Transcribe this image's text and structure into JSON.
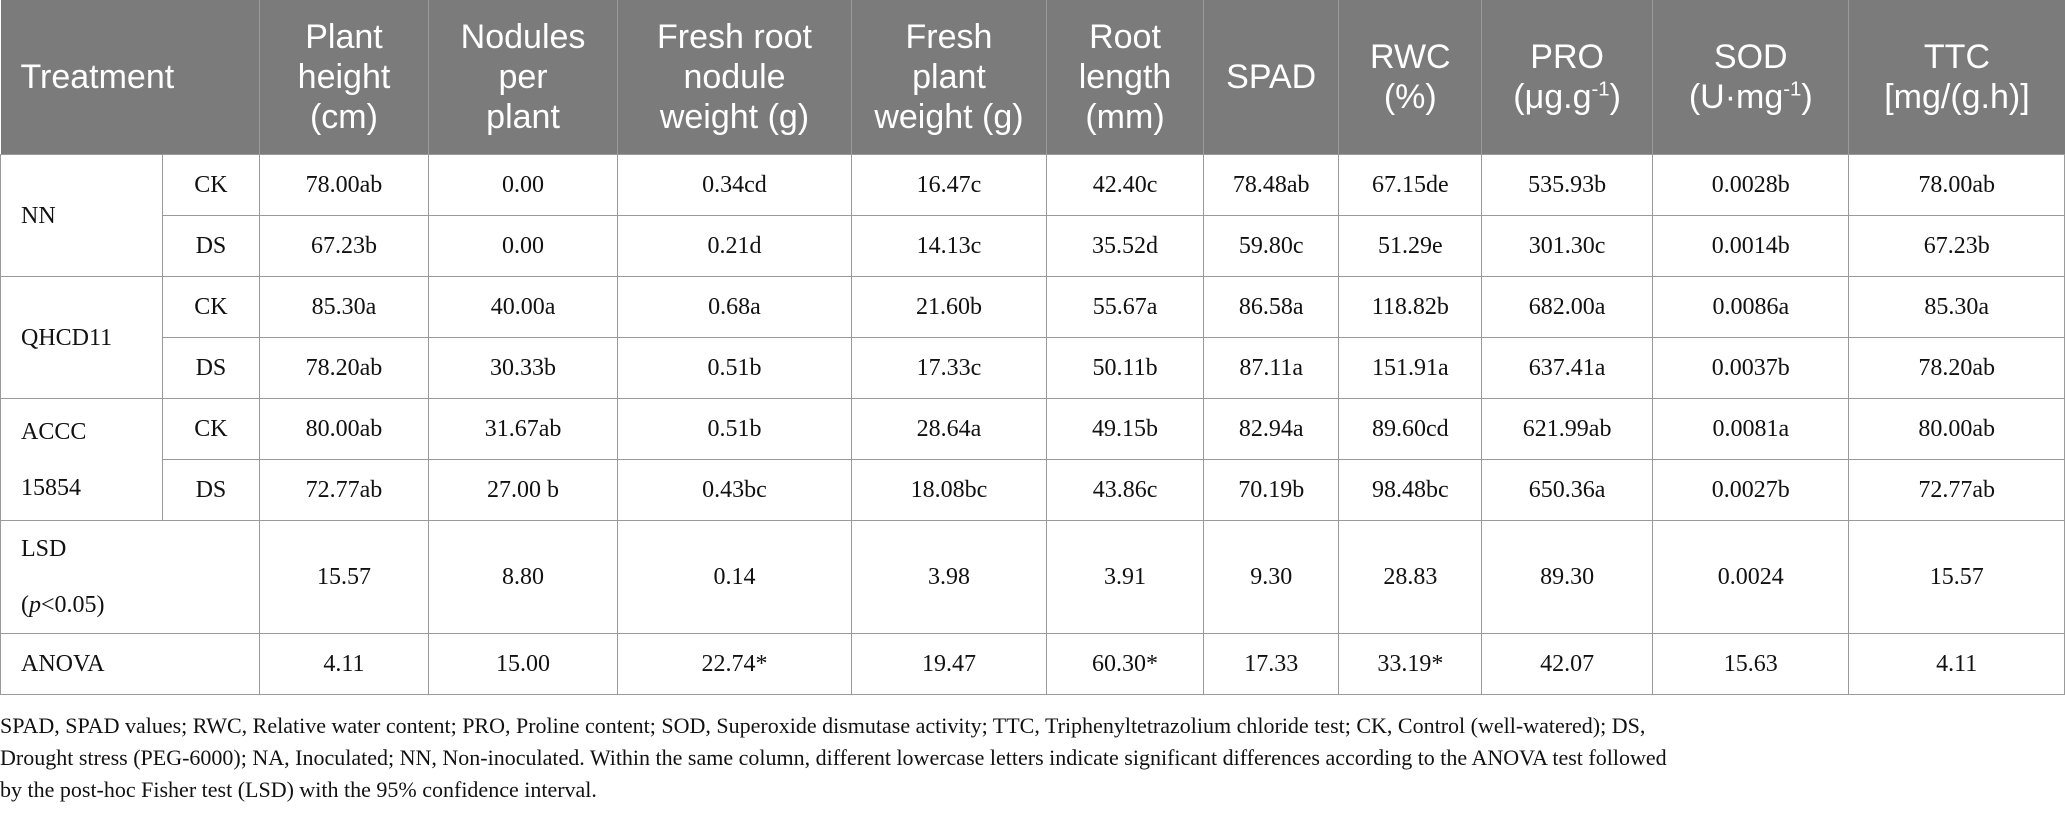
{
  "header": {
    "treatment": "Treatment",
    "columns": [
      {
        "line1": "Plant",
        "line2": "height",
        "line3": "(cm)"
      },
      {
        "line1": "Nodules",
        "line2": "per",
        "line3": "plant"
      },
      {
        "line1": "Fresh root",
        "line2": "nodule",
        "line3": "weight (g)"
      },
      {
        "line1": "Fresh",
        "line2": "plant",
        "line3": "weight (g)"
      },
      {
        "line1": "Root",
        "line2": "length",
        "line3": "(mm)"
      },
      {
        "line1": "SPAD",
        "line2": "",
        "line3": ""
      },
      {
        "line1": "RWC",
        "line2": "(%)",
        "line3": ""
      },
      {
        "line1": "PRO",
        "line2_pre": "(μg.g",
        "line2_sup": "-1",
        "line2_post": ")"
      },
      {
        "line1": "SOD",
        "line2_pre": "(U·mg",
        "line2_sup": "-1",
        "line2_post": ")"
      },
      {
        "line1": "TTC",
        "line2": "[mg/(g.h)]"
      }
    ]
  },
  "groups": [
    {
      "label_line1": "NN",
      "label_line2": "",
      "rows": [
        {
          "sub": "CK",
          "values": [
            "78.00ab",
            "0.00",
            "0.34cd",
            "16.47c",
            "42.40c",
            "78.48ab",
            "67.15de",
            "535.93b",
            "0.0028b",
            "78.00ab"
          ]
        },
        {
          "sub": "DS",
          "values": [
            "67.23b",
            "0.00",
            "0.21d",
            "14.13c",
            "35.52d",
            "59.80c",
            "51.29e",
            "301.30c",
            "0.0014b",
            "67.23b"
          ]
        }
      ]
    },
    {
      "label_line1": "QHCD11",
      "label_line2": "",
      "rows": [
        {
          "sub": "CK",
          "values": [
            "85.30a",
            "40.00a",
            "0.68a",
            "21.60b",
            "55.67a",
            "86.58a",
            "118.82b",
            "682.00a",
            "0.0086a",
            "85.30a"
          ]
        },
        {
          "sub": "DS",
          "values": [
            "78.20ab",
            "30.33b",
            "0.51b",
            "17.33c",
            "50.11b",
            "87.11a",
            "151.91a",
            "637.41a",
            "0.0037b",
            "78.20ab"
          ]
        }
      ]
    },
    {
      "label_line1": "ACCC",
      "label_line2": "15854",
      "rows": [
        {
          "sub": "CK",
          "values": [
            "80.00ab",
            "31.67ab",
            "0.51b",
            "28.64a",
            "49.15b",
            "82.94a",
            "89.60cd",
            "621.99ab",
            "0.0081a",
            "80.00ab"
          ]
        },
        {
          "sub": "DS",
          "values": [
            "72.77ab",
            "27.00 b",
            "0.43bc",
            "18.08bc",
            "43.86c",
            "70.19b",
            "98.48bc",
            "650.36a",
            "0.0027b",
            "72.77ab"
          ]
        }
      ]
    }
  ],
  "lsd": {
    "label_line1": "LSD",
    "label_open": "(",
    "label_p": "p",
    "label_rest": "<0.05)",
    "values": [
      "15.57",
      "8.80",
      "0.14",
      "3.98",
      "3.91",
      "9.30",
      "28.83",
      "89.30",
      "0.0024",
      "15.57"
    ]
  },
  "anova": {
    "label": "ANOVA",
    "values": [
      "4.11",
      "15.00",
      "22.74*",
      "19.47",
      "60.30*",
      "17.33",
      "33.19*",
      "42.07",
      "15.63",
      "4.11"
    ]
  },
  "footnote": {
    "line1": "SPAD, SPAD values; RWC, Relative water content; PRO, Proline content; SOD, Superoxide dismutase activity; TTC, Triphenyltetrazolium chloride test; CK, Control (well-watered); DS,",
    "line2": "Drought stress (PEG-6000); NA, Inoculated; NN, Non-inoculated. Within the same column, different lowercase letters indicate significant differences according to the ANOVA test followed",
    "line3": "by the post-hoc Fisher test (LSD) with the 95% confidence interval."
  }
}
